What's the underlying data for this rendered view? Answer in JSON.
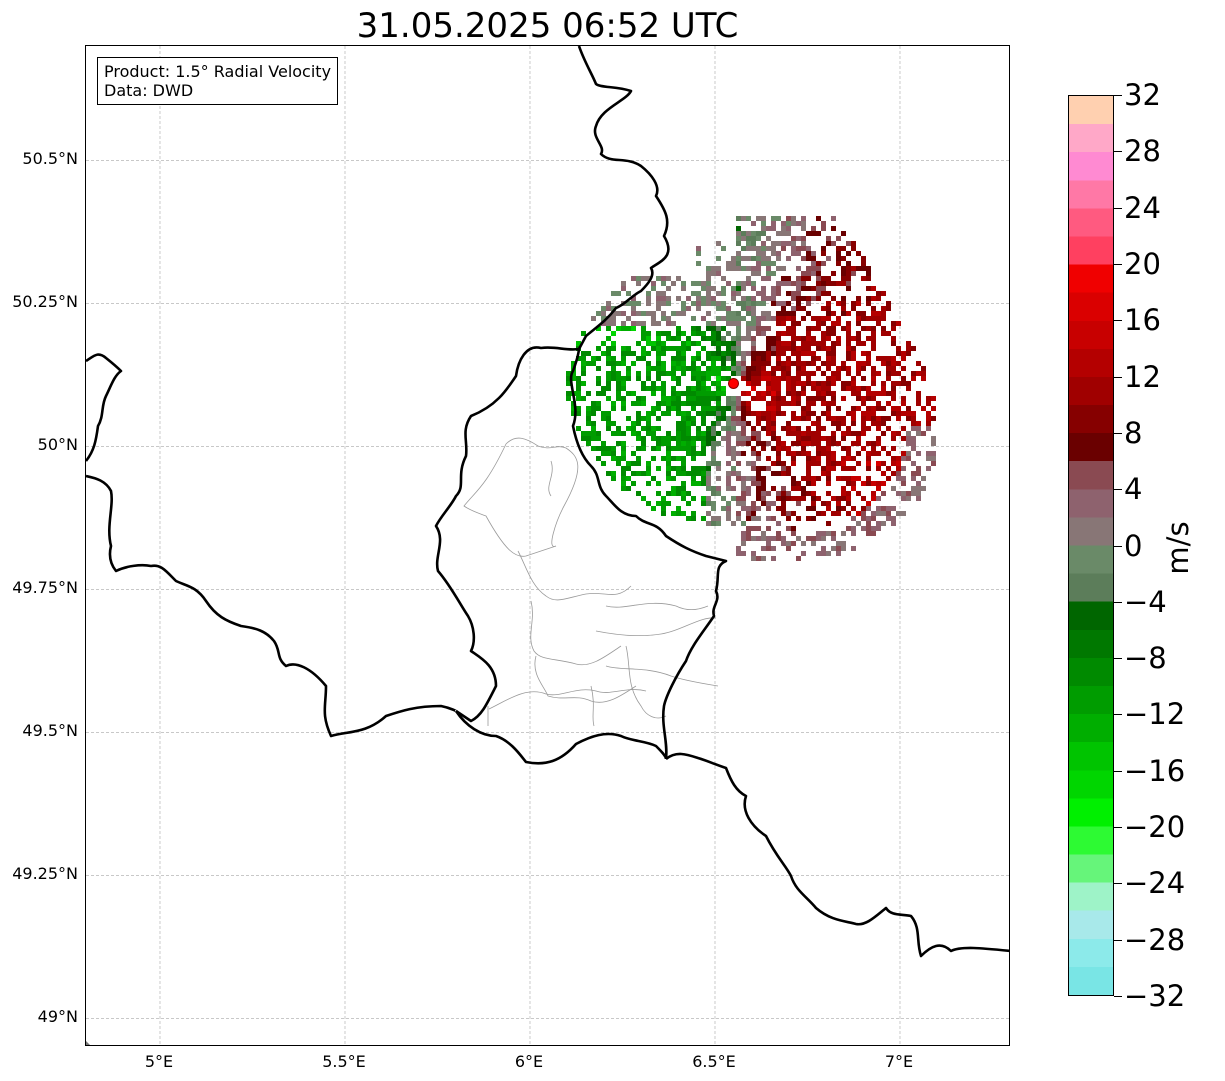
{
  "title": "31.05.2025 06:52 UTC",
  "info": {
    "product": "Product: 1.5° Radial Velocity",
    "source": "Data: DWD"
  },
  "map": {
    "lon_range": [
      4.8,
      7.3
    ],
    "lat_range": [
      48.95,
      50.7
    ],
    "lat_ticks": [
      {
        "value": 50.5,
        "label": "50.5°N"
      },
      {
        "value": 50.25,
        "label": "50.25°N"
      },
      {
        "value": 50.0,
        "label": "50°N"
      },
      {
        "value": 49.75,
        "label": "49.75°N"
      },
      {
        "value": 49.5,
        "label": "49.5°N"
      },
      {
        "value": 49.25,
        "label": "49.25°N"
      },
      {
        "value": 49.0,
        "label": "49°N"
      }
    ],
    "lon_ticks": [
      {
        "value": 5.0,
        "label": "5°E"
      },
      {
        "value": 5.5,
        "label": "5.5°E"
      },
      {
        "value": 6.0,
        "label": "6°E"
      },
      {
        "value": 6.5,
        "label": "6.5°E"
      },
      {
        "value": 7.0,
        "label": "7°E"
      }
    ],
    "radar_site": {
      "lon": 6.55,
      "lat": 50.11,
      "color": "#ff0000"
    },
    "border_color": "#000000",
    "grid": true
  },
  "colorbar": {
    "unit": "m/s",
    "min": -32,
    "max": 32,
    "ticks": [
      {
        "value": 32,
        "label": "32"
      },
      {
        "value": 28,
        "label": "28"
      },
      {
        "value": 24,
        "label": "24"
      },
      {
        "value": 20,
        "label": "20"
      },
      {
        "value": 16,
        "label": "16"
      },
      {
        "value": 12,
        "label": "12"
      },
      {
        "value": 8,
        "label": "8"
      },
      {
        "value": 4,
        "label": "4"
      },
      {
        "value": 0,
        "label": "0"
      },
      {
        "value": -4,
        "label": "−4"
      },
      {
        "value": -8,
        "label": "−8"
      },
      {
        "value": -12,
        "label": "−12"
      },
      {
        "value": -16,
        "label": "−16"
      },
      {
        "value": -20,
        "label": "−20"
      },
      {
        "value": -24,
        "label": "−24"
      },
      {
        "value": -28,
        "label": "−28"
      },
      {
        "value": -32,
        "label": "−32"
      }
    ],
    "colors": [
      "#79e5e5",
      "#8ceaea",
      "#a8e9ea",
      "#9ef3c8",
      "#66f57a",
      "#2dfa33",
      "#00f000",
      "#00d600",
      "#00c400",
      "#00ae00",
      "#009c00",
      "#008a00",
      "#007800",
      "#006600",
      "#5c7d5a",
      "#6a8a68",
      "#887676",
      "#8e626e",
      "#8a4a52",
      "#6a0000",
      "#860000",
      "#a00000",
      "#b40000",
      "#c80000",
      "#da0000",
      "#f00000",
      "#ff4060",
      "#ff5a80",
      "#ff78a6",
      "#ff8ad2",
      "#ffa8c8",
      "#ffd0b0"
    ]
  }
}
